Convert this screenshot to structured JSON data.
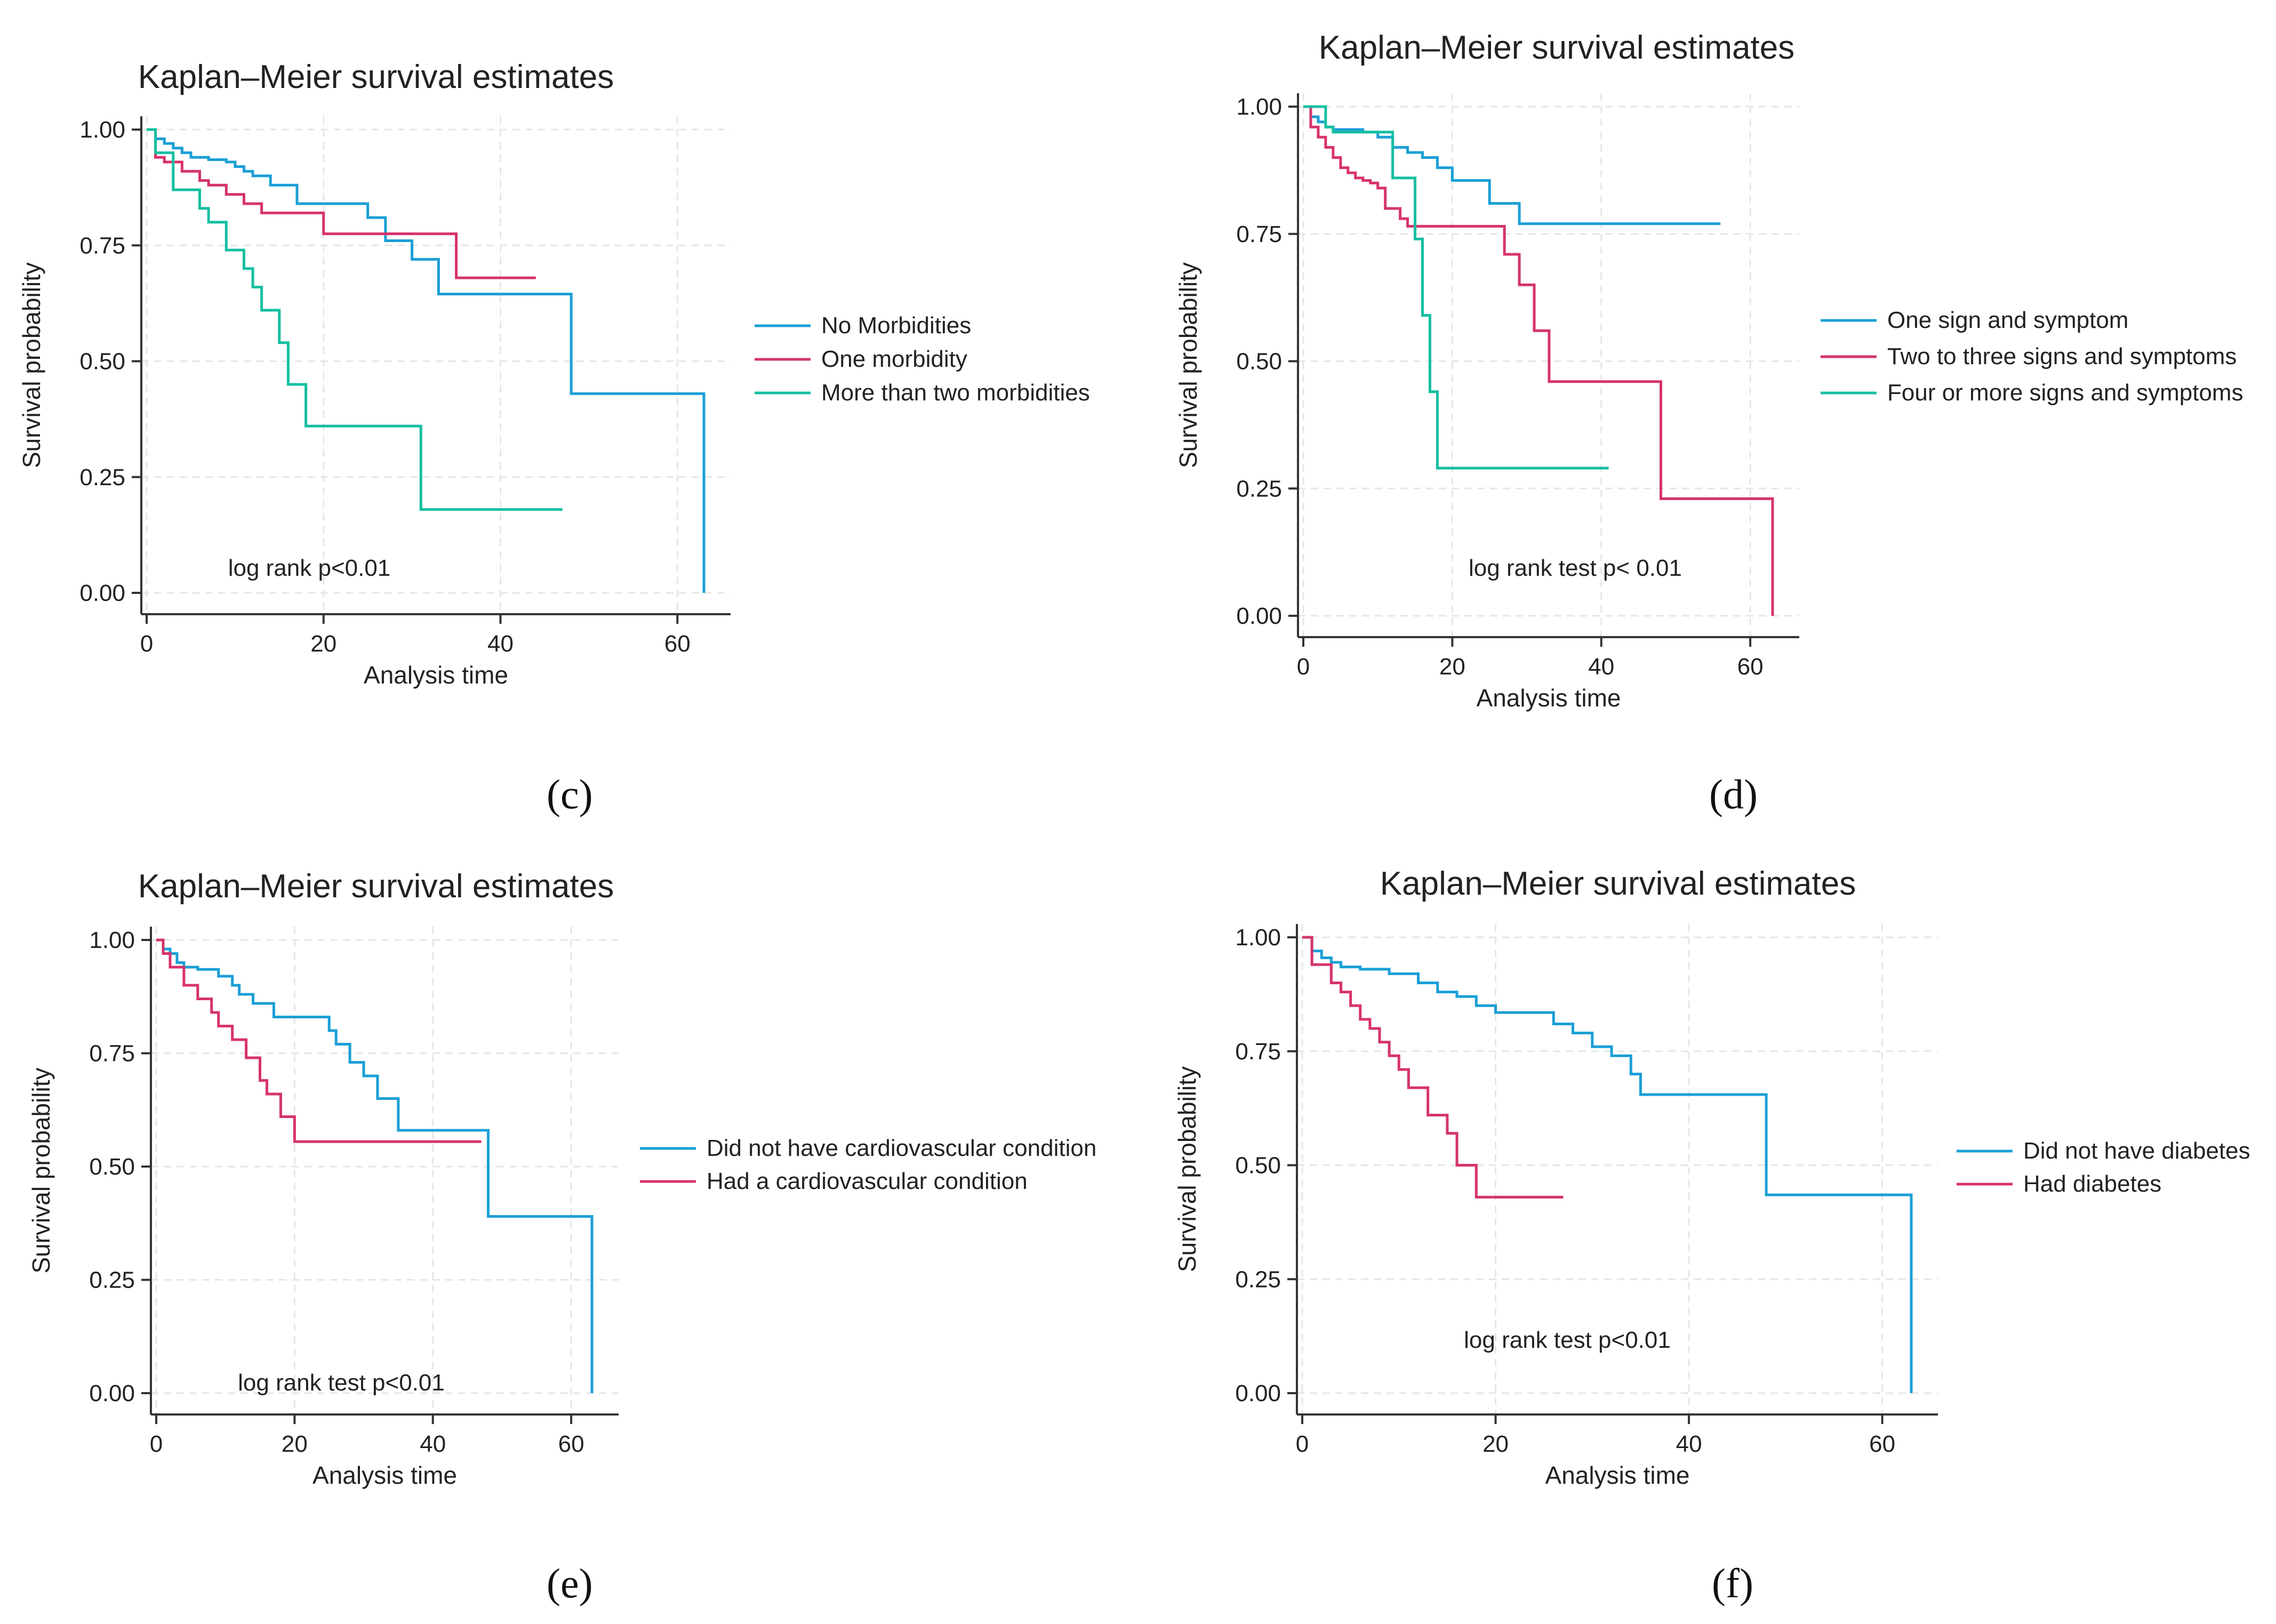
{
  "colors": {
    "blue": "#1a9fd6",
    "red": "#d6336c",
    "teal": "#14bfa0",
    "axis": "#333333",
    "grid": "#e6e6e6"
  },
  "panels": [
    {
      "label": "(c)"
    },
    {
      "label": "(d)"
    },
    {
      "label": "(e)"
    },
    {
      "label": "(f)"
    }
  ],
  "chart_data": [
    {
      "type": "line",
      "step": true,
      "title": "Kaplan–Meier survival estimates",
      "xlabel": "Analysis time",
      "ylabel": "Survival probability",
      "xlim": [
        0,
        65
      ],
      "ylim": [
        0,
        1
      ],
      "xticks": [
        "0",
        "20",
        "40",
        "60"
      ],
      "yticks": [
        "0.00",
        "0.25",
        "0.50",
        "0.75",
        "1.00"
      ],
      "grid": true,
      "legend_position": "right",
      "annotation": "log rank p<0.01",
      "series": [
        {
          "name": "No Morbidities",
          "color": "#1a9fd6",
          "x": [
            0,
            1,
            2,
            3,
            4,
            5,
            7,
            9,
            10,
            11,
            12,
            14,
            17,
            25,
            27,
            30,
            33,
            48,
            63
          ],
          "y": [
            1.0,
            0.98,
            0.97,
            0.96,
            0.95,
            0.94,
            0.935,
            0.93,
            0.92,
            0.91,
            0.9,
            0.88,
            0.84,
            0.81,
            0.76,
            0.72,
            0.645,
            0.43,
            0.0
          ]
        },
        {
          "name": "One morbidity",
          "color": "#d6336c",
          "x": [
            0,
            1,
            2,
            4,
            6,
            7,
            9,
            11,
            13,
            20,
            35,
            44
          ],
          "y": [
            1.0,
            0.94,
            0.93,
            0.91,
            0.89,
            0.88,
            0.86,
            0.84,
            0.82,
            0.775,
            0.68,
            0.68
          ]
        },
        {
          "name": "More than two morbidities",
          "color": "#14bfa0",
          "x": [
            0,
            1,
            3,
            6,
            7,
            9,
            11,
            12,
            13,
            15,
            16,
            18,
            31,
            47
          ],
          "y": [
            1.0,
            0.95,
            0.87,
            0.83,
            0.8,
            0.74,
            0.7,
            0.66,
            0.61,
            0.54,
            0.45,
            0.36,
            0.18,
            0.18
          ]
        }
      ]
    },
    {
      "type": "line",
      "step": true,
      "title": "Kaplan–Meier survival estimates",
      "xlabel": "Analysis time",
      "ylabel": "Survival probability",
      "xlim": [
        0,
        65
      ],
      "ylim": [
        0,
        1
      ],
      "xticks": [
        "0",
        "20",
        "40",
        "60"
      ],
      "yticks": [
        "0.00",
        "0.25",
        "0.50",
        "0.75",
        "1.00"
      ],
      "grid": true,
      "legend_position": "right",
      "annotation": "log rank test p< 0.01",
      "series": [
        {
          "name": "One sign and symptom",
          "color": "#1a9fd6",
          "x": [
            0,
            1,
            2,
            3,
            4,
            8,
            10,
            12,
            14,
            16,
            18,
            20,
            25,
            29,
            56
          ],
          "y": [
            1.0,
            0.98,
            0.97,
            0.96,
            0.955,
            0.95,
            0.94,
            0.92,
            0.91,
            0.9,
            0.88,
            0.855,
            0.81,
            0.77,
            0.77
          ]
        },
        {
          "name": "Two to three signs and symptoms",
          "color": "#d6336c",
          "x": [
            0,
            1,
            2,
            3,
            4,
            5,
            6,
            7,
            8,
            9,
            10,
            11,
            13,
            14,
            27,
            29,
            31,
            33,
            35,
            48,
            63
          ],
          "y": [
            1.0,
            0.96,
            0.94,
            0.92,
            0.9,
            0.88,
            0.87,
            0.86,
            0.855,
            0.85,
            0.84,
            0.8,
            0.78,
            0.765,
            0.71,
            0.65,
            0.56,
            0.46,
            0.46,
            0.23,
            0.0
          ]
        },
        {
          "name": "Four or more signs and symptoms",
          "color": "#14bfa0",
          "x": [
            0,
            3,
            4,
            9,
            12,
            15,
            16,
            17,
            18,
            41
          ],
          "y": [
            1.0,
            0.96,
            0.95,
            0.95,
            0.86,
            0.74,
            0.59,
            0.44,
            0.29,
            0.29
          ]
        }
      ]
    },
    {
      "type": "line",
      "step": true,
      "title": "Kaplan–Meier survival estimates",
      "xlabel": "Analysis time",
      "ylabel": "Survival probability",
      "xlim": [
        0,
        65
      ],
      "ylim": [
        0,
        1
      ],
      "xticks": [
        "0",
        "20",
        "40",
        "60"
      ],
      "yticks": [
        "0.00",
        "0.25",
        "0.50",
        "0.75",
        "1.00"
      ],
      "grid": true,
      "legend_position": "right",
      "annotation": "log rank test p<0.01",
      "series": [
        {
          "name": "Did not have cardiovascular condition",
          "color": "#1a9fd6",
          "x": [
            0,
            1,
            2,
            3,
            4,
            6,
            9,
            11,
            12,
            14,
            17,
            25,
            26,
            28,
            30,
            32,
            35,
            48,
            63
          ],
          "y": [
            1.0,
            0.98,
            0.97,
            0.95,
            0.94,
            0.935,
            0.92,
            0.9,
            0.88,
            0.86,
            0.83,
            0.8,
            0.77,
            0.73,
            0.7,
            0.65,
            0.58,
            0.39,
            0.0
          ]
        },
        {
          "name": "Had a cardiovascular condition",
          "color": "#d6336c",
          "x": [
            0,
            1,
            2,
            4,
            6,
            8,
            9,
            11,
            13,
            15,
            16,
            18,
            20,
            47
          ],
          "y": [
            1.0,
            0.97,
            0.94,
            0.9,
            0.87,
            0.84,
            0.81,
            0.78,
            0.74,
            0.69,
            0.66,
            0.61,
            0.555,
            0.555
          ]
        }
      ]
    },
    {
      "type": "line",
      "step": true,
      "title": "Kaplan–Meier survival estimates",
      "xlabel": "Analysis time",
      "ylabel": "Survival probability",
      "xlim": [
        0,
        65
      ],
      "ylim": [
        0,
        1
      ],
      "xticks": [
        "0",
        "20",
        "40",
        "60"
      ],
      "yticks": [
        "0.00",
        "0.25",
        "0.50",
        "0.75",
        "1.00"
      ],
      "grid": true,
      "legend_position": "right",
      "annotation": "log rank test p<0.01",
      "series": [
        {
          "name": "Did not have diabetes",
          "color": "#1a9fd6",
          "x": [
            0,
            1,
            2,
            3,
            4,
            6,
            9,
            12,
            14,
            16,
            18,
            20,
            26,
            28,
            30,
            32,
            34,
            35,
            48,
            63
          ],
          "y": [
            1.0,
            0.97,
            0.955,
            0.945,
            0.935,
            0.93,
            0.92,
            0.9,
            0.88,
            0.87,
            0.85,
            0.835,
            0.81,
            0.79,
            0.76,
            0.74,
            0.7,
            0.655,
            0.435,
            0.0
          ]
        },
        {
          "name": "Had diabetes",
          "color": "#d6336c",
          "x": [
            0,
            1,
            3,
            4,
            5,
            6,
            7,
            8,
            9,
            10,
            11,
            13,
            15,
            16,
            18,
            27
          ],
          "y": [
            1.0,
            0.94,
            0.9,
            0.88,
            0.85,
            0.82,
            0.8,
            0.77,
            0.74,
            0.71,
            0.67,
            0.61,
            0.57,
            0.5,
            0.43,
            0.43
          ]
        }
      ]
    }
  ]
}
